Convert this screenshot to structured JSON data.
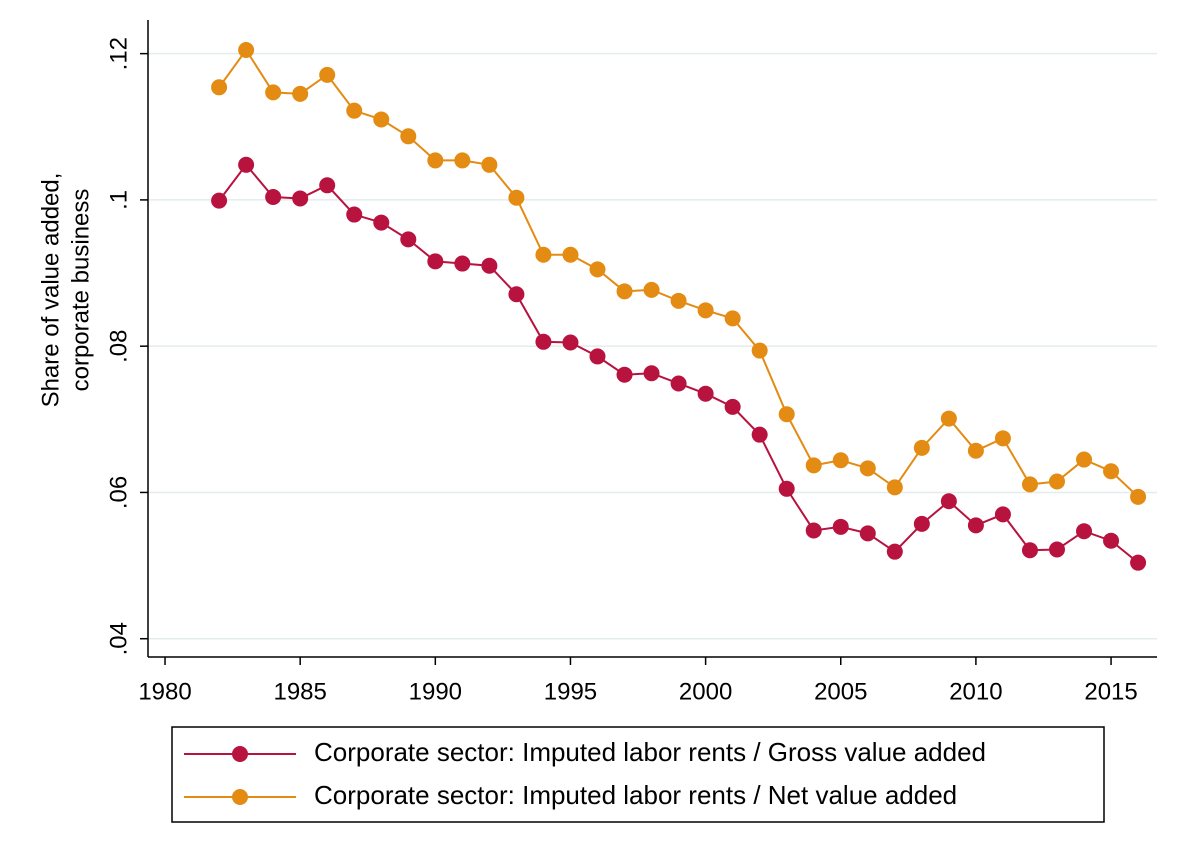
{
  "chart_data": {
    "type": "line",
    "ylabel": [
      "Share of value added,",
      "corporate business"
    ],
    "x": [
      1982,
      1983,
      1984,
      1985,
      1986,
      1987,
      1988,
      1989,
      1990,
      1991,
      1992,
      1993,
      1994,
      1995,
      1996,
      1997,
      1998,
      1999,
      2000,
      2001,
      2002,
      2003,
      2004,
      2005,
      2006,
      2007,
      2008,
      2009,
      2010,
      2011,
      2012,
      2013,
      2014,
      2015,
      2016
    ],
    "series": [
      {
        "name": "Corporate sector: Imputed labor rents / Gross value added",
        "color": "#b8123f",
        "values": [
          0.0999,
          0.1048,
          0.1004,
          0.1002,
          0.102,
          0.098,
          0.0969,
          0.0946,
          0.0916,
          0.0913,
          0.091,
          0.0871,
          0.0806,
          0.0805,
          0.0786,
          0.0761,
          0.0763,
          0.0749,
          0.0735,
          0.0717,
          0.0679,
          0.0605,
          0.0548,
          0.0553,
          0.0544,
          0.0519,
          0.0557,
          0.0588,
          0.0555,
          0.057,
          0.0521,
          0.0522,
          0.0547,
          0.0534,
          0.0504
        ]
      },
      {
        "name": "Corporate sector: Imputed labor rents / Net value added",
        "color": "#e38b12",
        "values": [
          0.1154,
          0.1205,
          0.1147,
          0.1145,
          0.1171,
          0.1122,
          0.111,
          0.1087,
          0.1054,
          0.1054,
          0.1048,
          0.1003,
          0.0925,
          0.0925,
          0.0905,
          0.0875,
          0.0877,
          0.0862,
          0.0849,
          0.0838,
          0.0794,
          0.0707,
          0.0637,
          0.0644,
          0.0633,
          0.0607,
          0.0661,
          0.0701,
          0.0657,
          0.0674,
          0.0611,
          0.0615,
          0.0645,
          0.0629,
          0.0594
        ]
      }
    ],
    "xlim": [
      1979.37,
      2016.7
    ],
    "xticks": [
      1980,
      1985,
      1990,
      1995,
      2000,
      2005,
      2010,
      2015
    ],
    "ylim": [
      0.0375,
      0.1246
    ],
    "yticks": [
      {
        "value": 0.04,
        "label": ".04"
      },
      {
        "value": 0.06,
        "label": ".06"
      },
      {
        "value": 0.08,
        "label": ".08"
      },
      {
        "value": 0.1,
        "label": ".1"
      },
      {
        "value": 0.12,
        "label": ".12"
      }
    ],
    "grid": true,
    "markers": true
  }
}
